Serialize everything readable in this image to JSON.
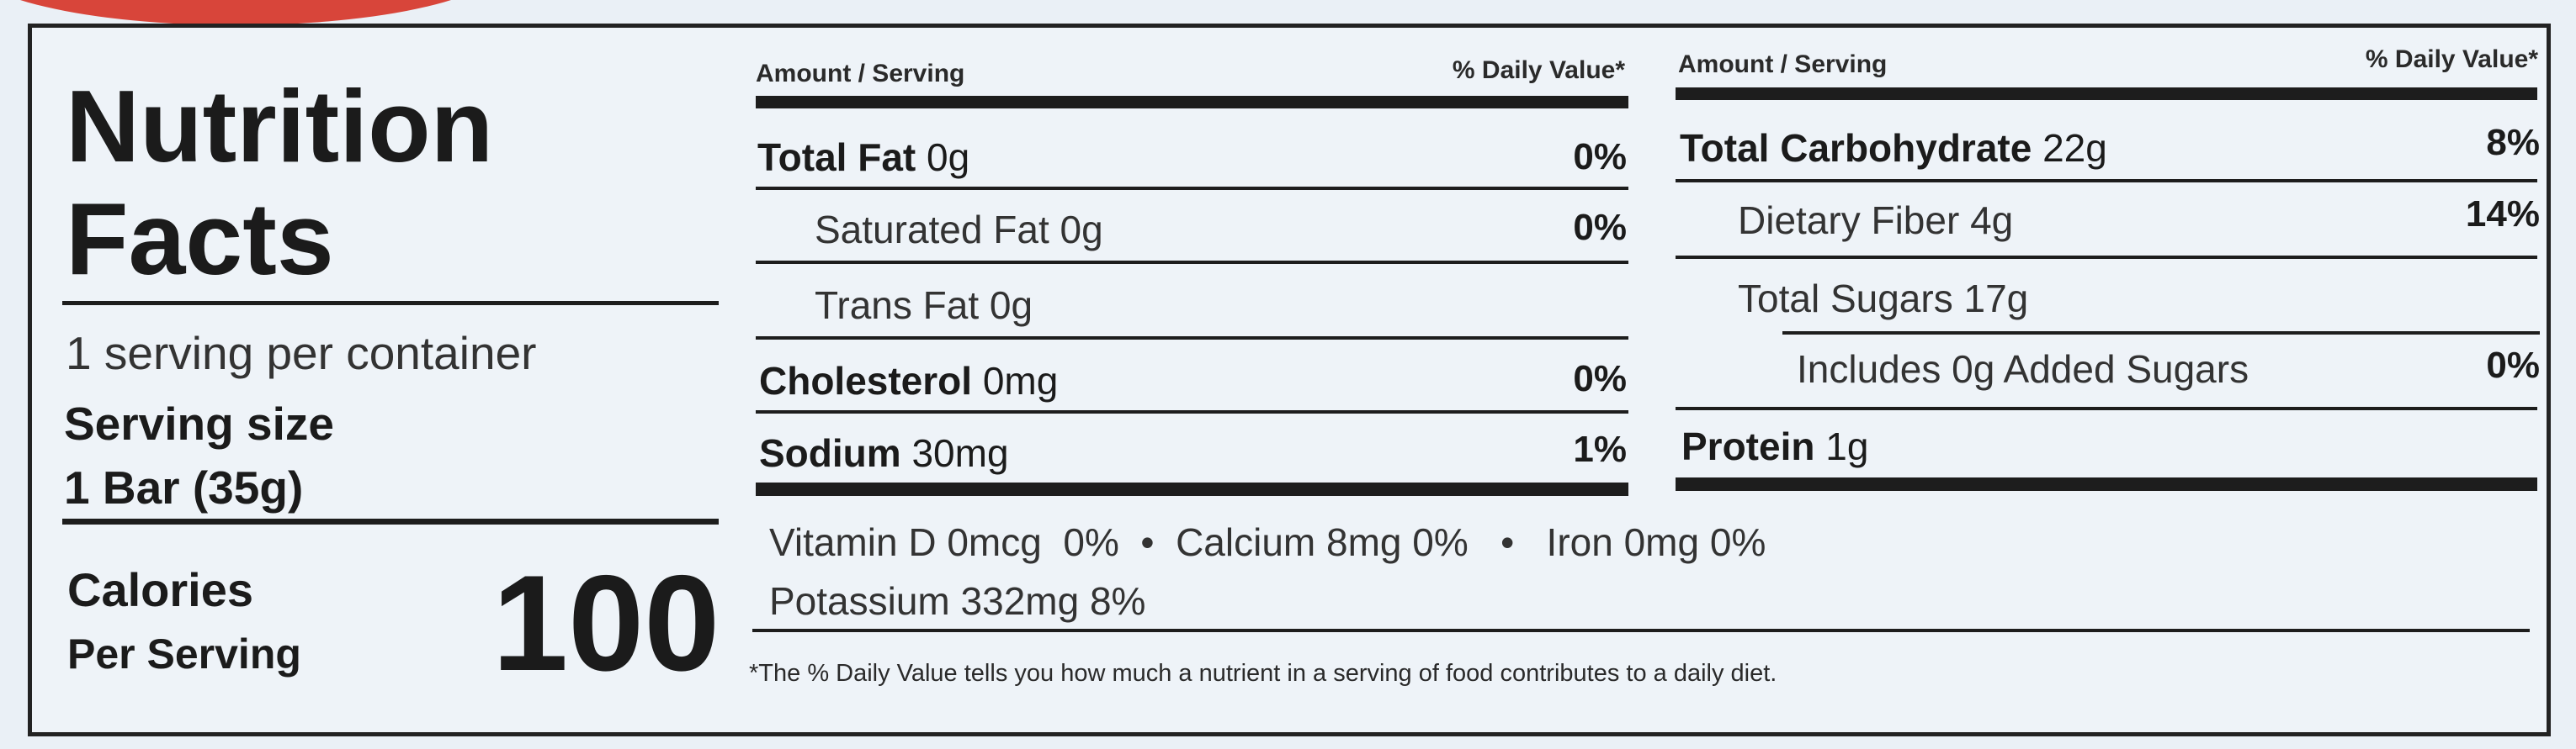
{
  "title_line1": "Nutrition",
  "title_line2": "Facts",
  "servings_per_container": "1 serving per container",
  "serving_size_label": "Serving size",
  "serving_size_value": "1 Bar (35g)",
  "calories_label": "Calories",
  "calories_sublabel": "Per Serving",
  "calories_value": "100",
  "column_header_amount": "Amount / Serving",
  "column_header_dv": "% Daily Value*",
  "left_nutrients": [
    {
      "name": "Total Fat",
      "amount": "0g",
      "dv": "0%"
    },
    {
      "name": "Saturated Fat",
      "amount": "0g",
      "dv": "0%"
    },
    {
      "name": "Trans Fat",
      "amount": "0g",
      "dv": ""
    },
    {
      "name": "Cholesterol",
      "amount": "0mg",
      "dv": "0%"
    },
    {
      "name": "Sodium",
      "amount": "30mg",
      "dv": "1%"
    }
  ],
  "right_nutrients": [
    {
      "name": "Total Carbohydrate",
      "amount": "22g",
      "dv": "8%"
    },
    {
      "name": "Dietary Fiber",
      "amount": "4g",
      "dv": "14%"
    },
    {
      "name": "Total Sugars",
      "amount": "17g",
      "dv": ""
    },
    {
      "name": "Includes 0g Added Sugars",
      "amount": "",
      "dv": "0%"
    },
    {
      "name": "Protein",
      "amount": "1g",
      "dv": ""
    }
  ],
  "micronutrients_line1": "Vitamin D 0mcg  0%  •  Calcium 8mg 0%   •   Iron 0mg 0%",
  "micronutrients_line2": "Potassium 332mg 8%",
  "footnote": "*The % Daily Value tells you how much a nutrient in a serving of food contributes to a daily diet."
}
